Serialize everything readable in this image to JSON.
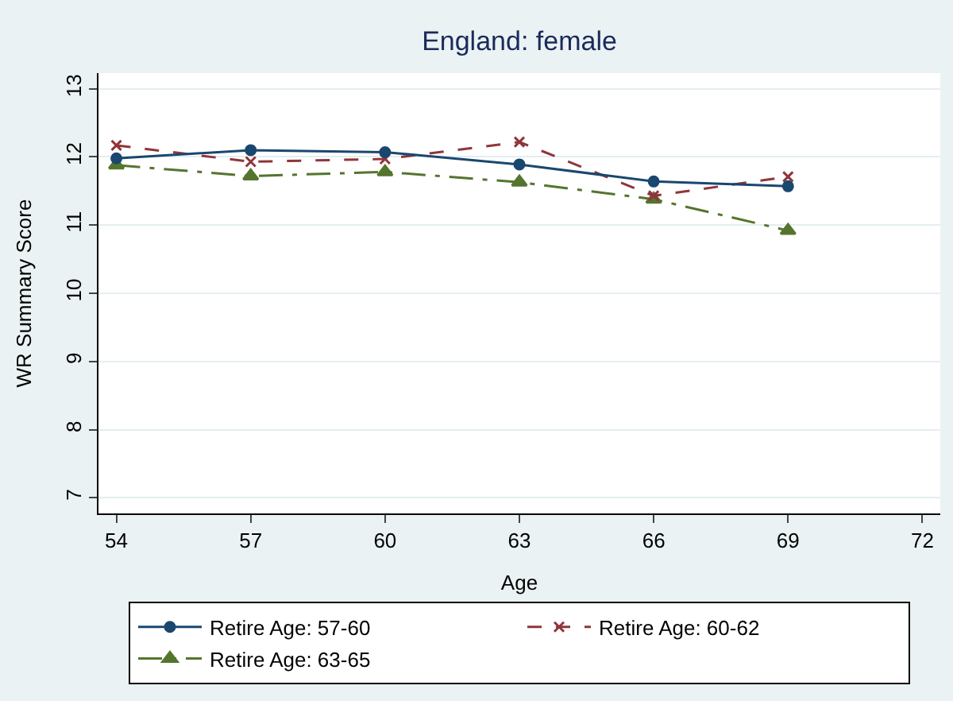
{
  "chart_data": {
    "type": "line",
    "title": "England: female",
    "xlabel": "Age",
    "ylabel": "WR Summary Score",
    "x": [
      54,
      57,
      60,
      63,
      66,
      69
    ],
    "series": [
      {
        "name": "Retire Age: 57-60",
        "color": "#1a476f",
        "marker": "circle",
        "line_style": "solid",
        "values": [
          11.98,
          12.1,
          12.07,
          11.89,
          11.64,
          11.57
        ]
      },
      {
        "name": "Retire Age: 60-62",
        "color": "#90353b",
        "marker": "cross",
        "line_style": "dashed",
        "values": [
          12.17,
          11.93,
          11.97,
          12.22,
          11.43,
          11.71
        ]
      },
      {
        "name": "Retire Age: 63-65",
        "color": "#55752f",
        "marker": "triangle",
        "line_style": "dashdot",
        "values": [
          11.88,
          11.72,
          11.78,
          11.63,
          11.38,
          10.92
        ]
      }
    ],
    "xlim": [
      53.6,
      72.4
    ],
    "xticks": [
      54,
      57,
      60,
      63,
      66,
      69,
      72
    ],
    "ylim": [
      6.77,
      13.23
    ],
    "yticks": [
      7,
      8,
      9,
      10,
      11,
      12,
      13
    ],
    "grid": "y",
    "legend": "bottom"
  }
}
